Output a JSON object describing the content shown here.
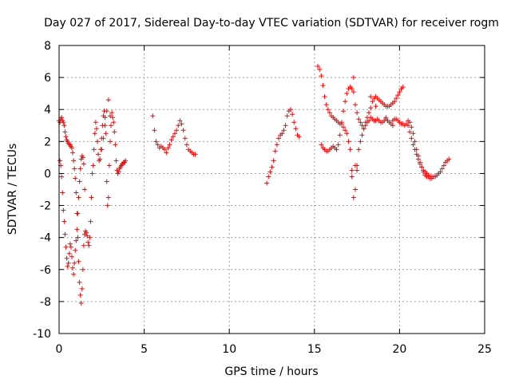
{
  "chart_data": {
    "type": "scatter",
    "title": "Day 027 of 2017, Sidereal Day-to-day VTEC variation (SDTVAR) for receiver rogm",
    "xlabel": "GPS time / hours",
    "ylabel": "SDTVAR / TECUs",
    "xlim": [
      0,
      25
    ],
    "ylim": [
      -10,
      8
    ],
    "xticks": [
      0,
      5,
      10,
      15,
      20,
      25
    ],
    "xtick_labels": [
      "0",
      "5",
      "10",
      "15",
      "20",
      "25"
    ],
    "yticks": [
      -10,
      -8,
      -6,
      -4,
      -2,
      0,
      2,
      4,
      6,
      8
    ],
    "ytick_labels": [
      "-10",
      "-8",
      "-6",
      "-4",
      "-2",
      "0",
      "2",
      "4",
      "6",
      "8"
    ],
    "grid": true,
    "marker": "+",
    "color": "#ff0000",
    "series": [
      {
        "name": "SDTVAR",
        "x": [
          0.0,
          0.05,
          0.1,
          0.15,
          0.2,
          0.25,
          0.3,
          0.35,
          0.4,
          0.45,
          0.5,
          0.55,
          0.6,
          0.65,
          0.7,
          0.75,
          0.8,
          0.85,
          0.9,
          0.95,
          1.0,
          1.05,
          1.1,
          1.15,
          1.2,
          1.25,
          1.3,
          1.35,
          1.4,
          1.45,
          1.5,
          1.55,
          1.6,
          1.65,
          1.7,
          1.75,
          1.8,
          1.85,
          1.9,
          1.95,
          2.0,
          2.05,
          2.1,
          2.15,
          2.2,
          2.25,
          2.3,
          2.35,
          2.4,
          2.45,
          2.5,
          2.55,
          2.6,
          2.65,
          2.7,
          2.75,
          2.8,
          2.85,
          2.9,
          2.95,
          3.0,
          3.05,
          3.1,
          3.15,
          3.2,
          3.25,
          3.3,
          3.35,
          3.4,
          3.45,
          3.5,
          3.55,
          3.6,
          3.65,
          3.7,
          3.75,
          3.8,
          3.85,
          3.9,
          0.05,
          0.1,
          0.15,
          0.2,
          0.25,
          0.3,
          0.35,
          0.4,
          0.45,
          0.5,
          0.55,
          0.6,
          0.65,
          0.7,
          0.75,
          0.8,
          0.85,
          0.9,
          0.95,
          1.0,
          1.05,
          1.1,
          1.15,
          1.2,
          1.25,
          1.3,
          1.35,
          1.4,
          1.45,
          1.5,
          2.5,
          2.6,
          2.7,
          2.8,
          2.9,
          3.0,
          5.5,
          5.6,
          5.7,
          5.8,
          5.9,
          6.0,
          6.1,
          6.2,
          6.3,
          6.4,
          6.5,
          6.6,
          6.7,
          6.8,
          6.9,
          7.0,
          7.1,
          7.2,
          7.3,
          7.4,
          7.5,
          7.6,
          7.7,
          7.8,
          7.9,
          8.0,
          12.2,
          12.3,
          12.4,
          12.5,
          12.6,
          12.7,
          12.8,
          12.9,
          13.0,
          13.1,
          13.2,
          13.3,
          13.4,
          13.5,
          13.6,
          13.7,
          13.8,
          13.9,
          14.0,
          14.1,
          15.2,
          15.3,
          15.4,
          15.5,
          15.6,
          15.7,
          15.8,
          15.9,
          16.0,
          16.1,
          16.2,
          16.3,
          16.4,
          16.5,
          16.6,
          16.7,
          16.8,
          16.9,
          17.0,
          17.1,
          17.2,
          17.3,
          17.4,
          17.5,
          17.6,
          17.7,
          17.8,
          17.9,
          18.0,
          18.1,
          18.2,
          18.3,
          18.4,
          18.5,
          18.6,
          18.7,
          18.8,
          18.9,
          19.0,
          19.1,
          19.2,
          19.3,
          19.4,
          19.5,
          19.6,
          19.7,
          19.8,
          19.9,
          20.0,
          20.1,
          20.2,
          15.4,
          15.5,
          15.6,
          15.7,
          15.8,
          15.9,
          16.0,
          16.1,
          16.2,
          16.3,
          16.4,
          16.5,
          16.6,
          16.7,
          16.8,
          16.9,
          17.0,
          17.1,
          17.2,
          17.3,
          17.4,
          17.5,
          17.6,
          17.7,
          17.8,
          17.9,
          18.0,
          18.1,
          18.2,
          18.3,
          18.4,
          18.5,
          18.6,
          18.7,
          18.8,
          18.9,
          19.0,
          19.1,
          19.2,
          19.3,
          19.4,
          19.5,
          19.6,
          19.7,
          19.8,
          19.9,
          20.0,
          20.1,
          20.2,
          20.3,
          20.4,
          20.5,
          20.6,
          20.7,
          20.8,
          20.9,
          21.0,
          21.1,
          21.2,
          21.3,
          21.4,
          21.5,
          21.6,
          21.7,
          21.8,
          21.9,
          22.0,
          22.1,
          22.2,
          22.3,
          22.4,
          22.5,
          22.6,
          22.7,
          22.8,
          22.9,
          20.5,
          20.6,
          20.7,
          20.8,
          20.9,
          21.0,
          21.1,
          21.2,
          21.3,
          21.4,
          21.5,
          21.6,
          21.7,
          21.8,
          21.9,
          22.0,
          17.2,
          17.3,
          17.4,
          17.5,
          18.3,
          18.6,
          19.2,
          19.6
        ],
        "y": [
          3.3,
          3.2,
          3.4,
          3.5,
          3.3,
          3.2,
          3.0,
          2.6,
          2.3,
          2.1,
          2.0,
          1.9,
          1.8,
          1.8,
          1.7,
          1.6,
          1.3,
          0.8,
          0.3,
          -0.3,
          -1.2,
          -2.5,
          -4.0,
          -5.5,
          -6.8,
          -7.6,
          -8.1,
          -7.2,
          -6.0,
          -4.5,
          -3.8,
          -3.6,
          -3.7,
          -3.9,
          -4.3,
          -4.5,
          -4.0,
          -3.0,
          -1.5,
          0.0,
          0.5,
          1.5,
          2.5,
          3.2,
          2.8,
          2.0,
          1.2,
          0.8,
          0.9,
          1.5,
          2.2,
          3.0,
          3.6,
          3.9,
          3.5,
          2.5,
          -0.5,
          -2.0,
          -1.5,
          0.5,
          2.0,
          3.0,
          3.8,
          3.5,
          3.2,
          2.6,
          1.8,
          0.8,
          0.2,
          0.0,
          0.1,
          0.3,
          0.4,
          0.5,
          0.6,
          0.6,
          0.7,
          0.7,
          0.8,
          0.8,
          0.5,
          -0.2,
          -1.2,
          -2.3,
          -3.0,
          -3.8,
          -4.6,
          -5.3,
          -5.8,
          -5.6,
          -5.0,
          -4.4,
          -4.6,
          -5.2,
          -5.9,
          -6.3,
          -5.6,
          -4.8,
          -4.2,
          -3.5,
          -2.5,
          -1.5,
          -0.5,
          0.3,
          0.9,
          1.1,
          1.0,
          0.6,
          -1.0,
          1.5,
          2.2,
          3.0,
          3.9,
          4.6,
          3.6,
          3.6,
          2.7,
          2.0,
          1.8,
          1.6,
          1.7,
          1.6,
          1.5,
          1.3,
          1.6,
          1.8,
          2.1,
          2.3,
          2.5,
          2.7,
          3.0,
          3.3,
          3.1,
          2.7,
          2.2,
          1.8,
          1.5,
          1.4,
          1.3,
          1.2,
          1.2,
          -0.6,
          -0.2,
          0.1,
          0.4,
          0.8,
          1.4,
          1.8,
          2.2,
          2.4,
          2.5,
          2.7,
          3.0,
          3.6,
          3.9,
          4.0,
          3.7,
          3.2,
          2.8,
          2.4,
          2.3,
          6.7,
          6.5,
          6.1,
          5.5,
          4.8,
          4.3,
          4.0,
          3.8,
          3.6,
          3.5,
          3.4,
          3.3,
          3.2,
          3.1,
          3.1,
          2.9,
          2.7,
          2.5,
          2.0,
          1.5,
          -0.2,
          -1.5,
          -1.0,
          0.5,
          1.5,
          2.0,
          2.4,
          2.8,
          3.2,
          3.5,
          3.8,
          4.1,
          4.5,
          4.7,
          4.8,
          4.7,
          4.6,
          4.5,
          4.4,
          4.3,
          4.2,
          4.2,
          4.2,
          4.3,
          4.4,
          4.5,
          4.7,
          4.9,
          5.1,
          5.3,
          5.4,
          1.8,
          1.6,
          1.5,
          1.4,
          1.4,
          1.5,
          1.6,
          1.7,
          1.6,
          1.5,
          1.8,
          2.4,
          3.2,
          3.9,
          4.5,
          5.0,
          5.3,
          5.4,
          5.3,
          5.1,
          4.3,
          3.8,
          3.4,
          3.2,
          3.0,
          2.8,
          3.0,
          3.2,
          3.3,
          3.5,
          3.4,
          3.3,
          3.3,
          3.4,
          3.3,
          3.2,
          3.2,
          3.3,
          3.4,
          3.3,
          3.2,
          3.1,
          3.3,
          3.4,
          3.4,
          3.3,
          3.2,
          3.1,
          3.1,
          3.0,
          3.1,
          3.3,
          3.2,
          2.9,
          2.5,
          2.0,
          1.5,
          1.1,
          0.7,
          0.4,
          0.1,
          -0.1,
          -0.2,
          -0.2,
          -0.3,
          -0.3,
          -0.2,
          -0.2,
          -0.1,
          0.0,
          0.1,
          0.3,
          0.5,
          0.7,
          0.8,
          0.9,
          3.0,
          2.6,
          2.2,
          1.8,
          1.5,
          1.2,
          0.9,
          0.6,
          0.4,
          0.2,
          0.1,
          0.0,
          -0.1,
          -0.2,
          -0.2,
          -0.2,
          0.2,
          6.0,
          0.5,
          0.2,
          4.8,
          4.2,
          3.5,
          3.0
        ]
      }
    ]
  }
}
